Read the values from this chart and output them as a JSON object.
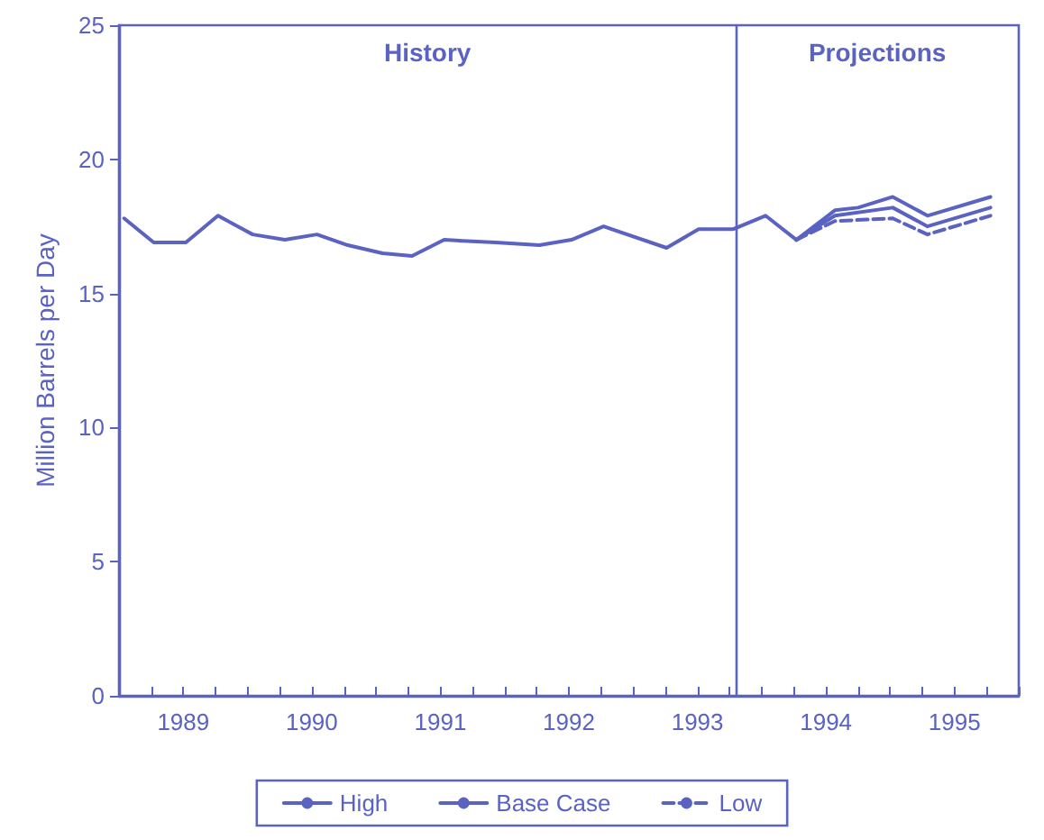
{
  "chart_data": {
    "type": "line",
    "ylabel": "Million Barrels per Day",
    "xlim": [
      1989,
      1996
    ],
    "xticks": [
      {
        "value": 1989,
        "label": null
      },
      {
        "value": 1989.25,
        "label": null
      },
      {
        "value": 1989.5,
        "label": "1989"
      },
      {
        "value": 1989.75,
        "label": null
      },
      {
        "value": 1990,
        "label": null
      },
      {
        "value": 1990.25,
        "label": null
      },
      {
        "value": 1990.5,
        "label": "1990"
      },
      {
        "value": 1990.75,
        "label": null
      },
      {
        "value": 1991,
        "label": null
      },
      {
        "value": 1991.25,
        "label": null
      },
      {
        "value": 1991.5,
        "label": "1991"
      },
      {
        "value": 1991.75,
        "label": null
      },
      {
        "value": 1992,
        "label": null
      },
      {
        "value": 1992.25,
        "label": null
      },
      {
        "value": 1992.5,
        "label": "1992"
      },
      {
        "value": 1992.75,
        "label": null
      },
      {
        "value": 1993,
        "label": null
      },
      {
        "value": 1993.25,
        "label": null
      },
      {
        "value": 1993.5,
        "label": "1993"
      },
      {
        "value": 1993.75,
        "label": null
      },
      {
        "value": 1994,
        "label": null
      },
      {
        "value": 1994.25,
        "label": null
      },
      {
        "value": 1994.5,
        "label": "1994"
      },
      {
        "value": 1994.75,
        "label": null
      },
      {
        "value": 1995,
        "label": null
      },
      {
        "value": 1995.25,
        "label": null
      },
      {
        "value": 1995.5,
        "label": "1995"
      },
      {
        "value": 1995.75,
        "label": null
      },
      {
        "value": 1996,
        "label": null
      }
    ],
    "ylim": [
      0,
      25
    ],
    "yticks": [
      0,
      5,
      10,
      15,
      20,
      25
    ],
    "series": [
      {
        "color": "#5a62c2",
        "line_style": "solid",
        "x": [
          1989.04,
          1989.27,
          1989.52,
          1989.77,
          1990.04,
          1990.29,
          1990.54,
          1990.78,
          1991.05,
          1991.28,
          1991.53,
          1991.93,
          1992.27,
          1992.52,
          1992.77,
          1993.26,
          1993.51,
          1993.78,
          1994.03,
          1994.27
        ],
        "values": [
          17.8,
          16.9,
          16.9,
          17.9,
          17.2,
          17.0,
          17.2,
          16.8,
          16.5,
          16.4,
          17.0,
          16.9,
          16.8,
          17.0,
          17.5,
          16.7,
          17.4,
          17.4,
          17.9,
          17.0
        ]
      },
      {
        "name": "High",
        "color": "#5a62c2",
        "line_style": "solid",
        "x": [
          1994.27,
          1994.57,
          1994.75,
          1995.02,
          1995.29,
          1995.78
        ],
        "values": [
          17.0,
          18.1,
          18.2,
          18.6,
          17.9,
          18.6
        ]
      },
      {
        "name": "Base Case",
        "color": "#5a62c2",
        "line_style": "solid",
        "x": [
          1994.27,
          1994.57,
          1995.02,
          1995.29,
          1995.78
        ],
        "values": [
          17.0,
          17.9,
          18.2,
          17.5,
          18.2
        ]
      },
      {
        "name": "Low",
        "color": "#5a62c2",
        "line_style": "dashed",
        "x": [
          1994.27,
          1994.57,
          1995.02,
          1995.29,
          1995.78
        ],
        "values": [
          17.0,
          17.7,
          17.8,
          17.2,
          17.9
        ]
      }
    ],
    "ref_lines": [
      {
        "axis": "x",
        "value": 1993.8,
        "color": "#5a62c2"
      }
    ],
    "annotations": [
      "History",
      "Projections"
    ],
    "grid": false,
    "legend": "bottom",
    "marker": "none"
  }
}
